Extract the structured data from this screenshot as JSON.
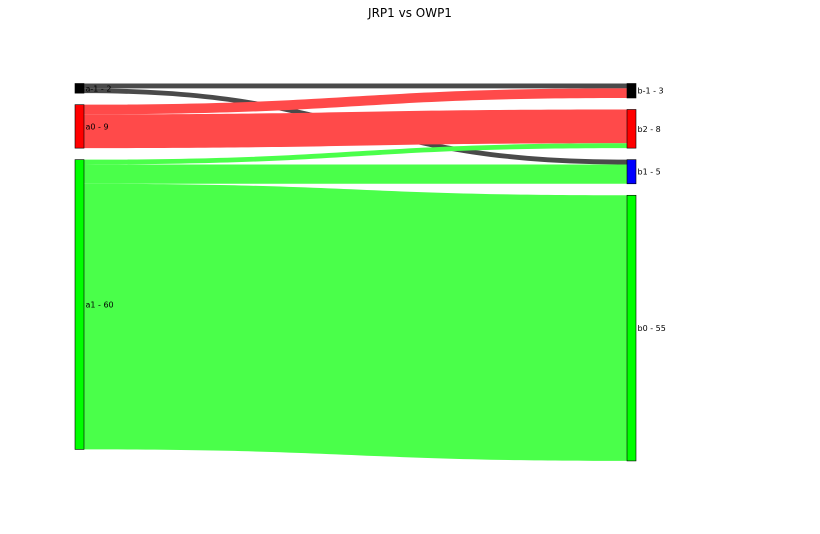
{
  "chart_data": {
    "type": "sankey",
    "title": "JRP1 vs OWP1",
    "left_nodes": [
      {
        "id": "a-1",
        "label": "a-1 - 2",
        "value": 2,
        "color": "#000000"
      },
      {
        "id": "a0",
        "label": "a0 - 9",
        "value": 9,
        "color": "#ff0000"
      },
      {
        "id": "a1",
        "label": "a1 - 60",
        "value": 60,
        "color": "#00ff00"
      }
    ],
    "right_nodes": [
      {
        "id": "b-1",
        "label": "b-1 - 3",
        "value": 3,
        "color": "#000000"
      },
      {
        "id": "b2",
        "label": "b2 - 8",
        "value": 8,
        "color": "#ff0000"
      },
      {
        "id": "b1",
        "label": "b1 - 5",
        "value": 5,
        "color": "#0000ff"
      },
      {
        "id": "b0",
        "label": "b0 - 55",
        "value": 55,
        "color": "#00ff00"
      }
    ],
    "flows": [
      {
        "source": "a-1",
        "target": "b-1",
        "value": 1,
        "color": "#4a4a4a"
      },
      {
        "source": "a-1",
        "target": "b1",
        "value": 1,
        "color": "#4a4a4a"
      },
      {
        "source": "a0",
        "target": "b-1",
        "value": 2,
        "color": "#ff4a4a"
      },
      {
        "source": "a0",
        "target": "b2",
        "value": 7,
        "color": "#ff4a4a"
      },
      {
        "source": "a1",
        "target": "b2",
        "value": 1,
        "color": "#4aff4a"
      },
      {
        "source": "a1",
        "target": "b1",
        "value": 4,
        "color": "#4aff4a"
      },
      {
        "source": "a1",
        "target": "b0",
        "value": 55,
        "color": "#4aff4a"
      }
    ]
  }
}
